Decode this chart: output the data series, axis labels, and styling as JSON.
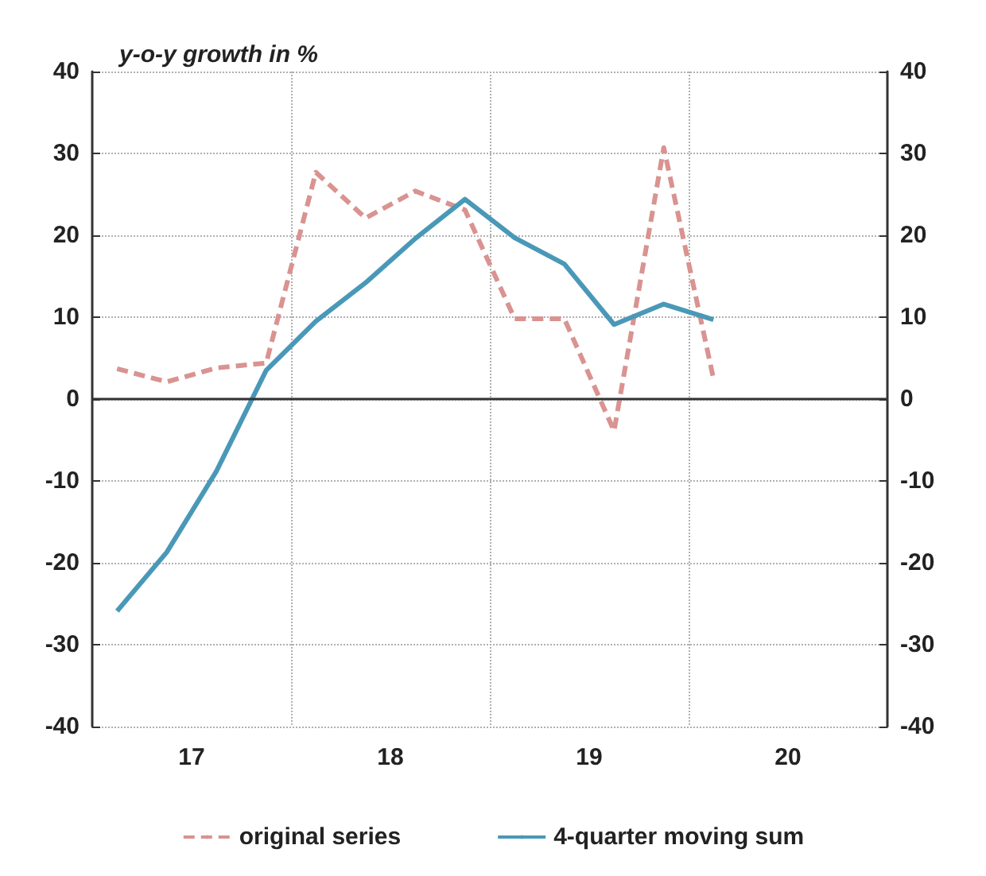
{
  "chart_data": {
    "type": "line",
    "title": "y-o-y growth in %",
    "x": [
      17.125,
      17.375,
      17.625,
      17.875,
      18.125,
      18.375,
      18.625,
      18.875,
      19.125,
      19.375,
      19.625,
      19.875,
      20.125
    ],
    "series": [
      {
        "name": "original series",
        "color": "#d99390",
        "line_style": "dashed",
        "values": [
          3.7,
          2.1,
          3.8,
          4.4,
          27.7,
          22.1,
          25.4,
          23.1,
          9.8,
          9.8,
          -3.9,
          30.7,
          2.5
        ]
      },
      {
        "name": "4-quarter moving sum",
        "color": "#4a98b8",
        "line_style": "solid",
        "values": [
          -25.9,
          -18.7,
          -8.8,
          3.5,
          9.5,
          14.2,
          19.6,
          24.4,
          19.7,
          16.5,
          9.1,
          11.6,
          9.7
        ]
      }
    ],
    "xlim": [
      17,
      21
    ],
    "xticks": [
      {
        "value": 17.5,
        "label": "17"
      },
      {
        "value": 18,
        "label": null
      },
      {
        "value": 18.5,
        "label": "18"
      },
      {
        "value": 19,
        "label": null
      },
      {
        "value": 19.5,
        "label": "19"
      },
      {
        "value": 20,
        "label": null
      },
      {
        "value": 20.5,
        "label": "20"
      }
    ],
    "ylim": [
      -40,
      40
    ],
    "yticks": [
      -40,
      -30,
      -20,
      -10,
      0,
      10,
      20,
      30,
      40
    ],
    "y2lim": [
      -40,
      40
    ],
    "y2ticks": [
      -40,
      -30,
      -20,
      -10,
      0,
      10,
      20,
      30,
      40
    ],
    "ref_lines": [
      {
        "axis": "y",
        "value": 0,
        "color": "#333333"
      }
    ],
    "grid": true,
    "legend": "bottom",
    "marker": "none"
  }
}
